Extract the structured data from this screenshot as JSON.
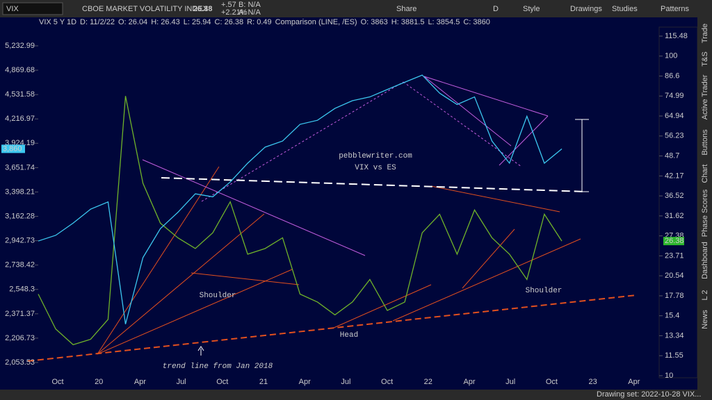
{
  "toolbar": {
    "symbol": "VIX",
    "description": "CBOE MARKET VOLATILITY INDEX",
    "last": "26.38",
    "change": "+.57",
    "change_pct": "+2.21%",
    "bid": "B: N/A",
    "ask": "A: N/A",
    "buttons": [
      "Share",
      "D",
      "Style",
      "Drawings",
      "Studies",
      "Patterns"
    ]
  },
  "header_line": [
    "VIX 5 Y 1D",
    "D: 11/2/22",
    "O: 26.04",
    "H: 26.43",
    "L: 25.94",
    "C: 26.38",
    "R: 0.49",
    "Comparison (LINE, /ES)",
    "O: 3863",
    "H: 3881.5",
    "L: 3854.5",
    "C: 3860"
  ],
  "chart": {
    "left_scale": "log",
    "left_lim": [
      2053.53,
      5232.99
    ],
    "left_ticks": [
      {
        "value": 5232.99,
        "label": "5,232.99"
      },
      {
        "value": 4869.68,
        "label": "4,869.68"
      },
      {
        "value": 4531.58,
        "label": "4,531.58"
      },
      {
        "value": 4216.97,
        "label": "4,216.97"
      },
      {
        "value": 3924.19,
        "label": "3,924.19"
      },
      {
        "value": 3651.74,
        "label": "3,651.74"
      },
      {
        "value": 3398.21,
        "label": "3,398.21"
      },
      {
        "value": 3162.28,
        "label": "3,162.28"
      },
      {
        "value": 2942.73,
        "label": "2,942.73"
      },
      {
        "value": 2738.42,
        "label": "2,738.42"
      },
      {
        "value": 2548.3,
        "label": "2,548.3"
      },
      {
        "value": 2371.37,
        "label": "2,371.37"
      },
      {
        "value": 2206.73,
        "label": "2,206.73"
      },
      {
        "value": 2053.53,
        "label": "2,053.53"
      }
    ],
    "right_scale": "log",
    "right_lim": [
      10,
      115.48
    ],
    "right_ticks": [
      115.48,
      100,
      86.6,
      74.99,
      64.94,
      56.23,
      48.7,
      42.17,
      36.52,
      31.62,
      27.38,
      23.71,
      20.54,
      17.78,
      15.4,
      13.34,
      11.55,
      10
    ],
    "x_labels": [
      "Oct",
      "20",
      "Apr",
      "Jul",
      "Oct",
      "21",
      "Apr",
      "Jul",
      "Oct",
      "22",
      "Apr",
      "Jul",
      "Oct",
      "23",
      "Apr"
    ],
    "left_tag": {
      "value": 3860,
      "label": "3,860"
    },
    "right_tag": 26.38,
    "es": {
      "name": "/ES",
      "color": "#3cc8f0",
      "values": [
        2940,
        2990,
        3100,
        3230,
        3300,
        2300,
        2800,
        3050,
        3200,
        3380,
        3350,
        3500,
        3700,
        3880,
        3950,
        4150,
        4200,
        4350,
        4450,
        4500,
        4600,
        4700,
        4800,
        4550,
        4400,
        4500,
        3950,
        3700,
        4250,
        3700,
        3860
      ]
    },
    "vix": {
      "name": "VIX",
      "color": "#6fb32a",
      "values": [
        18,
        14,
        12.5,
        13,
        15,
        75,
        40,
        30,
        27,
        25,
        28,
        35,
        24,
        25,
        27,
        18,
        17,
        15.5,
        17,
        20,
        16,
        17,
        28,
        32,
        24,
        33,
        27,
        24,
        20,
        32,
        26.38
      ]
    },
    "annotations": [
      "pebblewriter.com",
      "VIX vs ES",
      "Shoulder",
      "Head",
      "Shoulder",
      "trend line from Jan 2018"
    ]
  },
  "side_tabs": [
    "Trade",
    "T&S",
    "Active Trader",
    "Buttons",
    "Chart",
    "Phase Scores",
    "Dashboard",
    "L 2",
    "News"
  ],
  "status": "Drawing set: 2022-10-28 VIX..."
}
